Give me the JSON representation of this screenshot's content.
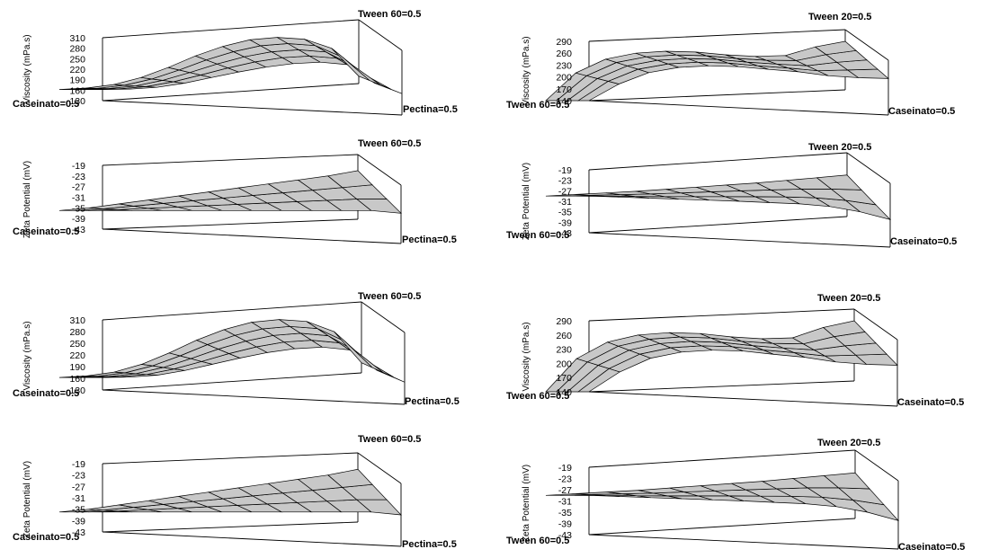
{
  "colors": {
    "surface": "#c8c8c8",
    "line": "#000000",
    "background": "#ffffff"
  },
  "chart_data": [
    {
      "type": "surface3d",
      "ylabel": "Viscosity (mPa.s)",
      "zticks": [
        "310",
        "280",
        "250",
        "220",
        "190",
        "160",
        "130"
      ],
      "zlim": [
        130,
        310
      ],
      "corner_top": "Tween 60=0.5",
      "corner_left": "Caseinato=0.5",
      "corner_right": "Pectina=0.5",
      "grid_rows": 4,
      "grid_cols": 11,
      "front_edge": [
        162,
        163,
        168,
        180,
        196,
        212,
        226,
        236,
        240,
        233,
        180,
        150
      ],
      "back_edge": [
        162,
        166,
        176,
        196,
        225,
        258,
        285,
        304,
        311,
        306,
        280,
        200
      ]
    },
    {
      "type": "surface3d",
      "ylabel": "Viscosity (mPa.s)",
      "zticks": [
        "290",
        "260",
        "230",
        "200",
        "170",
        "140"
      ],
      "zlim": [
        140,
        290
      ],
      "corner_top": "Tween 20=0.5",
      "corner_left": "Tween 60=0.5",
      "corner_right": "Caseinato=0.5",
      "grid_rows": 4,
      "grid_cols": 10,
      "front_edge": [
        140,
        182,
        211,
        224,
        228,
        226,
        219,
        213,
        203,
        198,
        196
      ],
      "back_edge": [
        140,
        210,
        245,
        260,
        265,
        263,
        256,
        252,
        254,
        276,
        290
      ]
    },
    {
      "type": "surface3d",
      "ylabel": "Zeta Potential (mV)",
      "zticks": [
        "-19",
        "-23",
        "-27",
        "-31",
        "-35",
        "-39",
        "-43"
      ],
      "zlim": [
        -43,
        -19
      ],
      "corner_top": "Tween 60=0.5",
      "corner_left": "Caseinato=0.5",
      "corner_right": "Pectina=0.5",
      "grid_rows": 3,
      "grid_cols": 10,
      "front_edge": [
        -36,
        -36,
        -36,
        -36,
        -36,
        -36,
        -36,
        -36,
        -36,
        -36,
        -37
      ],
      "back_edge": [
        -36,
        -35,
        -33.5,
        -32,
        -30.5,
        -29,
        -27.5,
        -26,
        -24.5,
        -23,
        -21
      ]
    },
    {
      "type": "surface3d",
      "ylabel": "Zeta Potential (mV)",
      "zticks": [
        "-19",
        "-23",
        "-27",
        "-31",
        "-35",
        "-39",
        "-43"
      ],
      "zlim": [
        -43,
        -19
      ],
      "corner_top": "Tween 20=0.5",
      "corner_left": "Tween 60=0.5",
      "corner_right": "Caseinato=0.5",
      "grid_rows": 3,
      "grid_cols": 10,
      "front_edge": [
        -29,
        -29.4,
        -29.8,
        -30.2,
        -30.6,
        -31,
        -31.5,
        -32,
        -33,
        -35,
        -38
      ],
      "back_edge": [
        -29,
        -28.4,
        -27.8,
        -27.2,
        -26.4,
        -25.6,
        -24.8,
        -24,
        -23,
        -22,
        -21
      ]
    },
    {
      "type": "surface3d",
      "ylabel": "Viscosity (mPa.s)",
      "zticks": [
        "310",
        "280",
        "250",
        "220",
        "190",
        "160",
        "130"
      ],
      "zlim": [
        130,
        310
      ],
      "corner_top": "Tween 60=0.5",
      "corner_left": "Caseinato=0.5",
      "corner_right": "Pectina=0.5",
      "grid_rows": 4,
      "grid_cols": 11,
      "front_edge": [
        162,
        163,
        168,
        180,
        196,
        212,
        226,
        236,
        240,
        233,
        180,
        150
      ],
      "back_edge": [
        162,
        166,
        176,
        196,
        225,
        258,
        285,
        304,
        311,
        306,
        280,
        200
      ]
    },
    {
      "type": "surface3d",
      "ylabel": "Viscosity (mPa.s)",
      "zticks": [
        "290",
        "260",
        "230",
        "200",
        "170",
        "140"
      ],
      "zlim": [
        140,
        290
      ],
      "corner_top": "Tween 20=0.5",
      "corner_left": "Tween 60=0.5",
      "corner_right": "Caseinato=0.5",
      "grid_rows": 4,
      "grid_cols": 10,
      "front_edge": [
        140,
        182,
        211,
        224,
        228,
        226,
        219,
        213,
        203,
        198,
        196
      ],
      "back_edge": [
        140,
        210,
        245,
        260,
        265,
        263,
        256,
        252,
        254,
        276,
        290
      ]
    },
    {
      "type": "surface3d",
      "ylabel": "Zeta Potential (mV)",
      "zticks": [
        "-19",
        "-23",
        "-27",
        "-31",
        "-35",
        "-39",
        "-43"
      ],
      "zlim": [
        -43,
        -19
      ],
      "corner_top": "Tween 60=0.5",
      "corner_left": "Caseinato=0.5",
      "corner_right": "Pectina=0.5",
      "grid_rows": 3,
      "grid_cols": 10,
      "front_edge": [
        -36,
        -36,
        -36,
        -36,
        -36,
        -36,
        -36,
        -36,
        -36,
        -36,
        -37
      ],
      "back_edge": [
        -36,
        -35,
        -33.5,
        -32,
        -30.5,
        -29,
        -27.5,
        -26,
        -24.5,
        -23,
        -21
      ]
    },
    {
      "type": "surface3d",
      "ylabel": "Zeta Potential (mV)",
      "zticks": [
        "-19",
        "-23",
        "-27",
        "-31",
        "-35",
        "-39",
        "-43"
      ],
      "zlim": [
        -43,
        -19
      ],
      "corner_top": "Tween 20=0.5",
      "corner_left": "Tween 60=0.5",
      "corner_right": "Caseinato=0.5",
      "grid_rows": 3,
      "grid_cols": 10,
      "front_edge": [
        -29,
        -29.4,
        -29.8,
        -30.2,
        -30.6,
        -31,
        -31.5,
        -32,
        -33,
        -35,
        -38
      ],
      "back_edge": [
        -29,
        -28.4,
        -27.8,
        -27.2,
        -26.4,
        -25.6,
        -24.8,
        -24,
        -23,
        -22,
        -21
      ]
    }
  ]
}
